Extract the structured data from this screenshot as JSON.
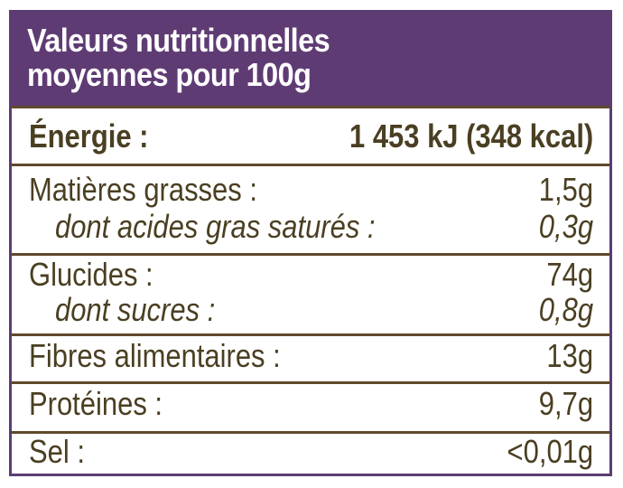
{
  "title": {
    "line1": "Valeurs nutritionnelles",
    "line2": "moyennes pour 100g"
  },
  "rows": [
    {
      "label": "Énergie :",
      "value": "1 453 kJ (348 kcal)"
    },
    {
      "label": "Matières grasses :",
      "value": "1,5g"
    },
    {
      "label": "dont acides gras saturés :",
      "value": "0,3g"
    },
    {
      "label": "Glucides :",
      "value": "74g"
    },
    {
      "label": "dont sucres :",
      "value": "0,8g"
    },
    {
      "label": "Fibres alimentaires :",
      "value": "13g"
    },
    {
      "label": "Protéines :",
      "value": "9,7g"
    },
    {
      "label": "Sel :",
      "value": "<0,01g"
    }
  ],
  "colors": {
    "header_background": "#5f3b74",
    "border": "#5b3d72",
    "text": "#4a3f22"
  }
}
